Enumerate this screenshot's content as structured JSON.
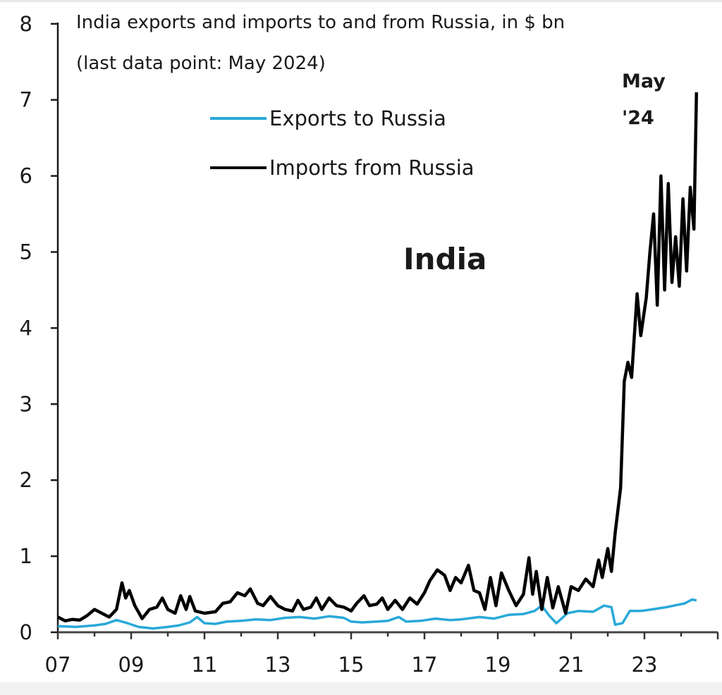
{
  "chart_data": {
    "type": "line",
    "title": "India exports and imports to and from Russia, in $ bn",
    "subtitle": "(last data point: May 2024)",
    "panel_label": "India",
    "annotation": {
      "line1": "May",
      "line2": "'24"
    },
    "xlabel": "",
    "ylabel": "",
    "ylim": [
      0,
      8
    ],
    "xlim": [
      2007,
      2025
    ],
    "y_ticks": [
      "0",
      "1",
      "2",
      "3",
      "4",
      "5",
      "6",
      "7",
      "8"
    ],
    "x_ticks": [
      "07",
      "09",
      "11",
      "13",
      "15",
      "17",
      "19",
      "21",
      "23"
    ],
    "grid": false,
    "legend_position": "upper center",
    "series": [
      {
        "name": "Exports to Russia",
        "color": "#29a9d9",
        "points": [
          [
            2007.0,
            0.08
          ],
          [
            2007.5,
            0.07
          ],
          [
            2008.0,
            0.09
          ],
          [
            2008.3,
            0.11
          ],
          [
            2008.6,
            0.16
          ],
          [
            2008.9,
            0.12
          ],
          [
            2009.2,
            0.07
          ],
          [
            2009.6,
            0.05
          ],
          [
            2010.0,
            0.07
          ],
          [
            2010.3,
            0.09
          ],
          [
            2010.6,
            0.13
          ],
          [
            2010.8,
            0.2
          ],
          [
            2011.0,
            0.12
          ],
          [
            2011.3,
            0.11
          ],
          [
            2011.6,
            0.14
          ],
          [
            2012.0,
            0.15
          ],
          [
            2012.4,
            0.17
          ],
          [
            2012.8,
            0.16
          ],
          [
            2013.2,
            0.19
          ],
          [
            2013.6,
            0.2
          ],
          [
            2014.0,
            0.18
          ],
          [
            2014.4,
            0.21
          ],
          [
            2014.8,
            0.19
          ],
          [
            2015.0,
            0.14
          ],
          [
            2015.3,
            0.13
          ],
          [
            2015.7,
            0.14
          ],
          [
            2016.0,
            0.15
          ],
          [
            2016.3,
            0.2
          ],
          [
            2016.5,
            0.14
          ],
          [
            2016.9,
            0.15
          ],
          [
            2017.3,
            0.18
          ],
          [
            2017.7,
            0.16
          ],
          [
            2018.0,
            0.17
          ],
          [
            2018.5,
            0.2
          ],
          [
            2018.9,
            0.18
          ],
          [
            2019.3,
            0.23
          ],
          [
            2019.7,
            0.24
          ],
          [
            2020.0,
            0.28
          ],
          [
            2020.2,
            0.35
          ],
          [
            2020.4,
            0.22
          ],
          [
            2020.6,
            0.12
          ],
          [
            2020.9,
            0.25
          ],
          [
            2021.2,
            0.28
          ],
          [
            2021.6,
            0.27
          ],
          [
            2021.9,
            0.35
          ],
          [
            2022.1,
            0.33
          ],
          [
            2022.2,
            0.1
          ],
          [
            2022.4,
            0.12
          ],
          [
            2022.6,
            0.28
          ],
          [
            2022.9,
            0.28
          ],
          [
            2023.2,
            0.3
          ],
          [
            2023.6,
            0.33
          ],
          [
            2023.9,
            0.36
          ],
          [
            2024.1,
            0.38
          ],
          [
            2024.3,
            0.43
          ],
          [
            2024.42,
            0.42
          ]
        ]
      },
      {
        "name": "Imports from Russia",
        "color": "#000000",
        "points": [
          [
            2007.0,
            0.2
          ],
          [
            2007.2,
            0.15
          ],
          [
            2007.4,
            0.17
          ],
          [
            2007.6,
            0.16
          ],
          [
            2007.8,
            0.22
          ],
          [
            2008.0,
            0.3
          ],
          [
            2008.2,
            0.25
          ],
          [
            2008.4,
            0.2
          ],
          [
            2008.6,
            0.3
          ],
          [
            2008.75,
            0.65
          ],
          [
            2008.85,
            0.45
          ],
          [
            2008.95,
            0.55
          ],
          [
            2009.1,
            0.35
          ],
          [
            2009.3,
            0.18
          ],
          [
            2009.5,
            0.3
          ],
          [
            2009.7,
            0.33
          ],
          [
            2009.85,
            0.45
          ],
          [
            2010.0,
            0.3
          ],
          [
            2010.2,
            0.25
          ],
          [
            2010.35,
            0.48
          ],
          [
            2010.5,
            0.3
          ],
          [
            2010.6,
            0.47
          ],
          [
            2010.75,
            0.28
          ],
          [
            2011.0,
            0.25
          ],
          [
            2011.3,
            0.27
          ],
          [
            2011.5,
            0.38
          ],
          [
            2011.7,
            0.4
          ],
          [
            2011.9,
            0.52
          ],
          [
            2012.1,
            0.48
          ],
          [
            2012.25,
            0.57
          ],
          [
            2012.45,
            0.38
          ],
          [
            2012.6,
            0.35
          ],
          [
            2012.8,
            0.47
          ],
          [
            2013.0,
            0.35
          ],
          [
            2013.2,
            0.3
          ],
          [
            2013.4,
            0.28
          ],
          [
            2013.55,
            0.42
          ],
          [
            2013.7,
            0.3
          ],
          [
            2013.9,
            0.33
          ],
          [
            2014.05,
            0.45
          ],
          [
            2014.2,
            0.3
          ],
          [
            2014.4,
            0.45
          ],
          [
            2014.6,
            0.35
          ],
          [
            2014.8,
            0.33
          ],
          [
            2015.0,
            0.28
          ],
          [
            2015.15,
            0.38
          ],
          [
            2015.35,
            0.48
          ],
          [
            2015.5,
            0.35
          ],
          [
            2015.7,
            0.37
          ],
          [
            2015.85,
            0.45
          ],
          [
            2016.0,
            0.3
          ],
          [
            2016.2,
            0.42
          ],
          [
            2016.4,
            0.3
          ],
          [
            2016.6,
            0.45
          ],
          [
            2016.8,
            0.37
          ],
          [
            2017.0,
            0.52
          ],
          [
            2017.15,
            0.68
          ],
          [
            2017.35,
            0.82
          ],
          [
            2017.55,
            0.75
          ],
          [
            2017.7,
            0.55
          ],
          [
            2017.85,
            0.72
          ],
          [
            2018.0,
            0.65
          ],
          [
            2018.2,
            0.88
          ],
          [
            2018.35,
            0.55
          ],
          [
            2018.5,
            0.52
          ],
          [
            2018.65,
            0.3
          ],
          [
            2018.8,
            0.72
          ],
          [
            2018.95,
            0.35
          ],
          [
            2019.1,
            0.78
          ],
          [
            2019.3,
            0.55
          ],
          [
            2019.5,
            0.35
          ],
          [
            2019.7,
            0.5
          ],
          [
            2019.85,
            0.98
          ],
          [
            2019.95,
            0.5
          ],
          [
            2020.05,
            0.8
          ],
          [
            2020.2,
            0.3
          ],
          [
            2020.35,
            0.72
          ],
          [
            2020.5,
            0.32
          ],
          [
            2020.65,
            0.6
          ],
          [
            2020.85,
            0.25
          ],
          [
            2021.0,
            0.6
          ],
          [
            2021.2,
            0.55
          ],
          [
            2021.4,
            0.7
          ],
          [
            2021.6,
            0.6
          ],
          [
            2021.75,
            0.95
          ],
          [
            2021.85,
            0.72
          ],
          [
            2022.0,
            1.1
          ],
          [
            2022.1,
            0.8
          ],
          [
            2022.2,
            1.3
          ],
          [
            2022.35,
            1.9
          ],
          [
            2022.45,
            3.3
          ],
          [
            2022.55,
            3.55
          ],
          [
            2022.65,
            3.35
          ],
          [
            2022.8,
            4.45
          ],
          [
            2022.9,
            3.9
          ],
          [
            2023.05,
            4.4
          ],
          [
            2023.15,
            5.0
          ],
          [
            2023.25,
            5.5
          ],
          [
            2023.35,
            4.3
          ],
          [
            2023.45,
            6.0
          ],
          [
            2023.55,
            4.5
          ],
          [
            2023.65,
            5.9
          ],
          [
            2023.75,
            4.6
          ],
          [
            2023.85,
            5.2
          ],
          [
            2023.95,
            4.55
          ],
          [
            2024.05,
            5.7
          ],
          [
            2024.15,
            4.75
          ],
          [
            2024.25,
            5.85
          ],
          [
            2024.35,
            5.3
          ],
          [
            2024.42,
            7.1
          ]
        ]
      }
    ]
  }
}
